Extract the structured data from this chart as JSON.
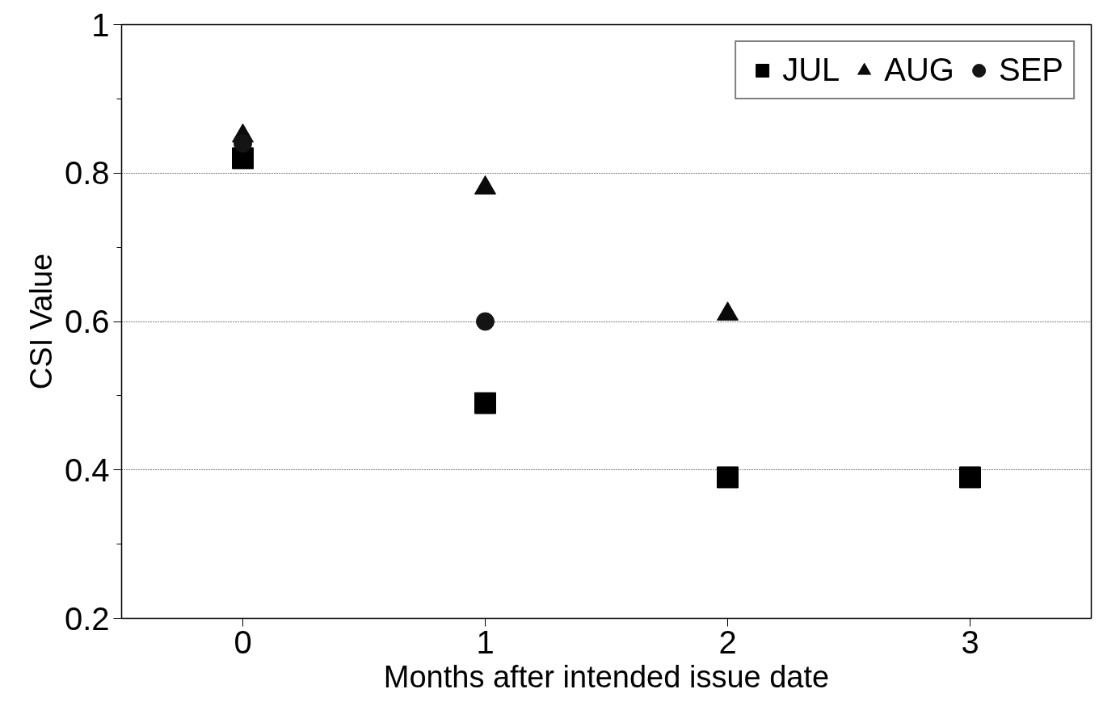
{
  "chart_data": {
    "type": "scatter",
    "xlabel": "Months after intended issue date",
    "ylabel": "CSI Value",
    "x": [
      0,
      1,
      2,
      3
    ],
    "series": [
      {
        "name": "JUL",
        "color": "#000000",
        "marker": "square",
        "values": [
          0.82,
          0.49,
          0.39,
          0.39
        ]
      },
      {
        "name": "AUG",
        "color": "#0a0a0a",
        "marker": "triangle",
        "values": [
          0.85,
          0.78,
          0.61,
          null
        ]
      },
      {
        "name": "SEP",
        "color": "#141414",
        "marker": "circle",
        "values": [
          0.84,
          0.6,
          null,
          null
        ]
      }
    ],
    "xlim": [
      -0.5,
      3.5
    ],
    "ylim": [
      0.2,
      1
    ],
    "xticks": [
      0,
      1,
      2,
      3
    ],
    "yticks": [
      0.2,
      0.4,
      0.6,
      0.8,
      1
    ],
    "grid": "y",
    "legend": "top right"
  }
}
